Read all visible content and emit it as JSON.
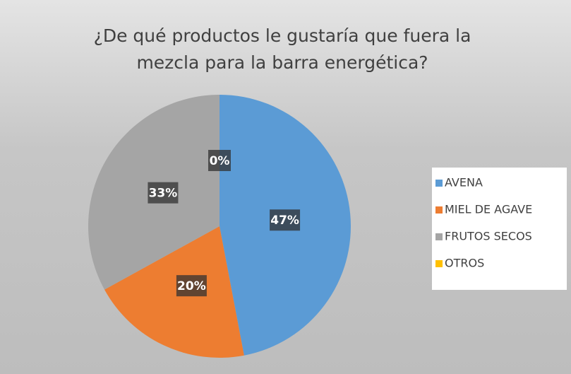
{
  "chart_data": {
    "type": "pie",
    "title": "¿De qué productos le gustaría que fuera la mezcla para la barra energética?",
    "categories": [
      "AVENA",
      "MIEL DE AGAVE",
      "FRUTOS SECOS",
      "OTROS"
    ],
    "values": [
      47,
      20,
      33,
      0
    ],
    "value_labels": [
      "47%",
      "20%",
      "33%",
      "0%"
    ],
    "colors": [
      "#5b9bd5",
      "#ed7d31",
      "#a5a5a5",
      "#ffc000"
    ],
    "legend": "right"
  }
}
